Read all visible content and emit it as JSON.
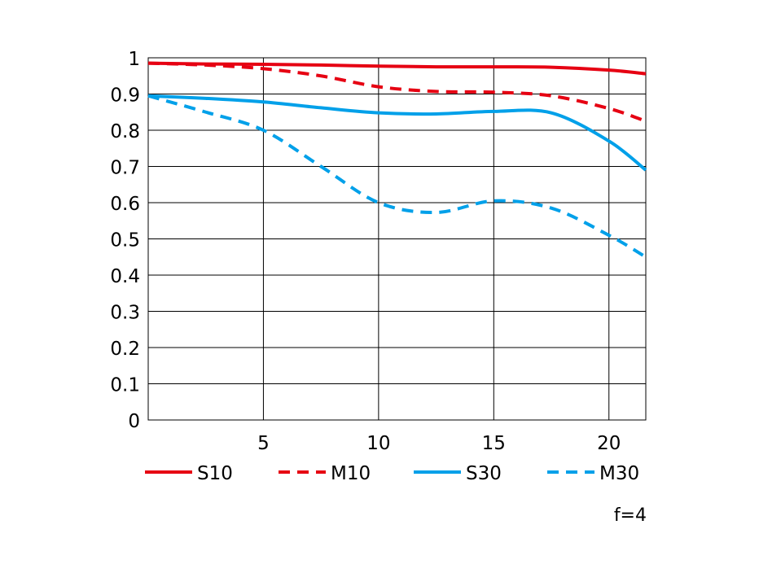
{
  "chart_data": {
    "type": "line",
    "title": "",
    "xlabel": "",
    "ylabel": "",
    "xlim": [
      0,
      21.6
    ],
    "ylim": [
      0,
      1
    ],
    "grid": true,
    "legend_position": "bottom",
    "x_ticks": [
      5,
      10,
      15,
      20
    ],
    "x_tick_labels": [
      "5",
      "10",
      "15",
      "20"
    ],
    "y_ticks": [
      0,
      0.1,
      0.2,
      0.3,
      0.4,
      0.5,
      0.6,
      0.7,
      0.8,
      0.9,
      1
    ],
    "y_tick_labels": [
      "0",
      "0.1",
      "0.2",
      "0.3",
      "0.4",
      "0.5",
      "0.6",
      "0.7",
      "0.8",
      "0.9",
      "1"
    ],
    "x": [
      0,
      2.5,
      5,
      7.5,
      10,
      12.5,
      15,
      17.5,
      20,
      21.6
    ],
    "series": [
      {
        "name": "S10",
        "color": "#e60012",
        "style": "solid",
        "values": [
          0.985,
          0.983,
          0.982,
          0.98,
          0.977,
          0.975,
          0.975,
          0.974,
          0.966,
          0.956
        ]
      },
      {
        "name": "M10",
        "color": "#e60012",
        "style": "dashed",
        "values": [
          0.985,
          0.98,
          0.97,
          0.95,
          0.92,
          0.907,
          0.905,
          0.895,
          0.86,
          0.825
        ]
      },
      {
        "name": "S30",
        "color": "#00a0e9",
        "style": "solid",
        "values": [
          0.895,
          0.888,
          0.878,
          0.862,
          0.848,
          0.845,
          0.852,
          0.848,
          0.77,
          0.69
        ]
      },
      {
        "name": "M30",
        "color": "#00a0e9",
        "style": "dashed",
        "values": [
          0.895,
          0.85,
          0.8,
          0.7,
          0.6,
          0.573,
          0.605,
          0.585,
          0.51,
          0.45
        ]
      }
    ],
    "annotation": "f=4"
  }
}
